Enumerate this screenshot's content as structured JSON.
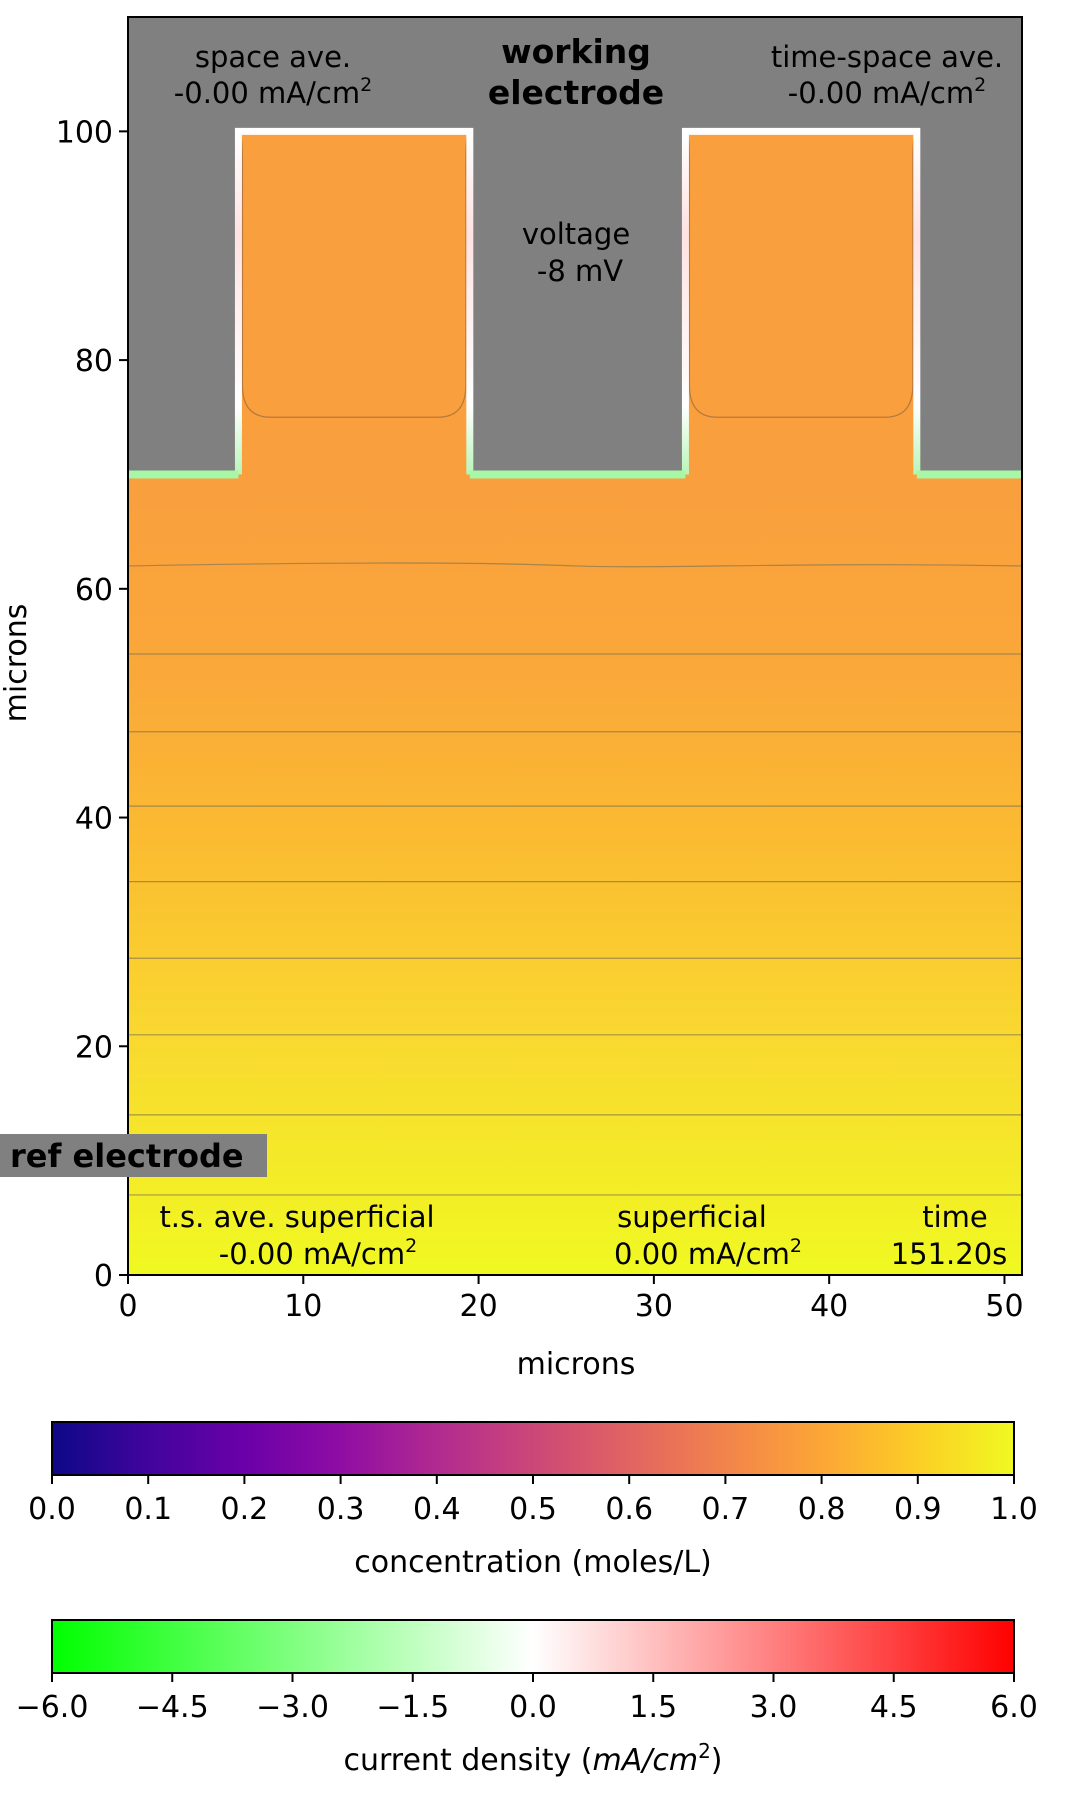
{
  "chart_data": [
    {
      "type": "heatmap",
      "title": "",
      "xlabel": "microns",
      "ylabel": "microns",
      "xlim": [
        0,
        51
      ],
      "ylim": [
        0,
        110
      ],
      "x_ticks": [
        "0",
        "10",
        "20",
        "30",
        "40",
        "50"
      ],
      "y_ticks": [
        "0",
        "20",
        "40",
        "60",
        "80",
        "100"
      ],
      "domain_colors": {
        "electrode": "#808080",
        "ref_box": "#808080"
      },
      "electrode_surface_y": 70,
      "pillars": [
        {
          "x0": 6.3,
          "x1": 19.5,
          "y_top": 100
        },
        {
          "x0": 31.8,
          "x1": 45.0,
          "y_top": 100
        }
      ],
      "concentration_contours": [
        {
          "level": 0.71,
          "y": 62
        },
        {
          "level": 0.74,
          "y": 54.3
        },
        {
          "level": 0.77,
          "y": 47.5
        },
        {
          "level": 0.8,
          "y": 41
        },
        {
          "level": 0.83,
          "y": 34.4
        },
        {
          "level": 0.86,
          "y": 27.7
        },
        {
          "level": 0.89,
          "y": 21
        },
        {
          "level": 0.92,
          "y": 14
        },
        {
          "level": 0.95,
          "y": 7
        }
      ],
      "pillar_inner_contour_y_bottom": 75,
      "annotations": {
        "electrode_label": "working\nelectrode",
        "space_ave_label": "space ave.",
        "space_ave_value": "-0.00 mA/cm",
        "time_space_ave_label": "time-space ave.",
        "time_space_ave_value": "-0.00 mA/cm",
        "voltage_label": "voltage",
        "voltage_value": "-8 mV",
        "ref_electrode": "ref electrode",
        "ts_ave_superficial_label": "t.s. ave. superficial",
        "ts_ave_superficial_value": "-0.00 mA/cm",
        "superficial_label": "superficial",
        "superficial_value": "0.00 mA/cm",
        "time_label": "time",
        "time_value": "151.20s",
        "unit_exponent": "2"
      }
    },
    {
      "type": "colorbar",
      "label": "concentration (moles/L)",
      "range": [
        0.0,
        1.0
      ],
      "ticks": [
        "0.0",
        "0.1",
        "0.2",
        "0.3",
        "0.4",
        "0.5",
        "0.6",
        "0.7",
        "0.8",
        "0.9",
        "1.0"
      ],
      "colormap": "plasma",
      "colors": [
        "#0d0887",
        "#41049d",
        "#6a00a8",
        "#8f0da4",
        "#b12a90",
        "#cc4778",
        "#e16462",
        "#f2844b",
        "#fca636",
        "#fcce25",
        "#f0f921"
      ]
    },
    {
      "type": "colorbar",
      "label_prefix": "current density (",
      "label_math": "mA/cm",
      "label_exp": "2",
      "label_suffix": ")",
      "range": [
        -6.0,
        6.0
      ],
      "ticks": [
        "−6.0",
        "−4.5",
        "−3.0",
        "−1.5",
        "0.0",
        "1.5",
        "3.0",
        "4.5",
        "6.0"
      ],
      "colors": [
        "#00ff00",
        "#ffffff",
        "#ff0000"
      ]
    }
  ]
}
